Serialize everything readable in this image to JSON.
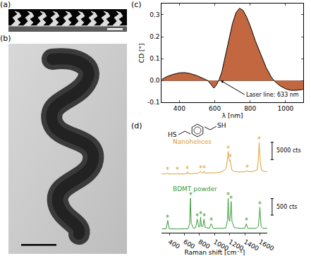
{
  "panels": [
    "(a)",
    "(b)",
    "(c)",
    "(d)"
  ],
  "structure_labels": [
    "HS",
    "SH"
  ],
  "chart_data": [
    {
      "type": "area",
      "x_label": "λ [nm]",
      "y_label": "CD [°]",
      "x": [
        300,
        330,
        360,
        400,
        430,
        460,
        500,
        530,
        560,
        580,
        595,
        610,
        625,
        640,
        660,
        680,
        700,
        720,
        740,
        760,
        780,
        800,
        830,
        860,
        890,
        920,
        940,
        970,
        1000,
        1030,
        1060,
        1090,
        1100
      ],
      "values": [
        0.005,
        0.018,
        0.027,
        0.035,
        0.036,
        0.032,
        0.022,
        0.012,
        0.0,
        -0.02,
        -0.035,
        -0.02,
        0.005,
        0.04,
        0.11,
        0.19,
        0.26,
        0.31,
        0.33,
        0.32,
        0.29,
        0.25,
        0.18,
        0.12,
        0.06,
        0.015,
        -0.005,
        -0.025,
        -0.038,
        -0.045,
        -0.045,
        -0.042,
        -0.04
      ],
      "color": "#c2673f",
      "xlim": [
        300,
        1100
      ],
      "xticks": [
        400,
        600,
        800,
        1000
      ],
      "ylim": [
        -0.1,
        0.35
      ],
      "yticks": [
        -0.1,
        {
          "value": 0,
          "label": "0.0"
        },
        0.1,
        0.2,
        0.3
      ],
      "annotations": [
        {
          "text": "Laser line: 633 nm",
          "x": 633,
          "y": 0
        }
      ]
    },
    {
      "type": "line",
      "x_label": "Raman shift [cm⁻¹]",
      "xlim": [
        300,
        1700
      ],
      "xticks": [
        400,
        600,
        800,
        1000,
        1200,
        1400,
        1600
      ],
      "tick_labels": "x",
      "series": [
        {
          "name": "Nanohelices",
          "color": "#dba034",
          "x": [
            300,
            360,
            375,
            390,
            450,
            500,
            510,
            520,
            600,
            630,
            640,
            650,
            700,
            780,
            800,
            815,
            830,
            850,
            860,
            870,
            950,
            1050,
            1100,
            1150,
            1170,
            1180,
            1190,
            1200,
            1205,
            1215,
            1230,
            1260,
            1300,
            1400,
            1420,
            1430,
            1440,
            1500,
            1560,
            1575,
            1590,
            1605,
            1620,
            1660,
            1700
          ],
          "values": [
            1500,
            1500,
            1900,
            1500,
            1500,
            1500,
            1800,
            1500,
            1500,
            1600,
            2100,
            1600,
            1600,
            1700,
            2000,
            2300,
            1800,
            1800,
            2300,
            1800,
            1800,
            1900,
            2200,
            3000,
            5500,
            8000,
            6000,
            5200,
            5500,
            4000,
            2600,
            2200,
            2100,
            2100,
            2300,
            2500,
            2200,
            2200,
            2600,
            4500,
            10500,
            5000,
            2600,
            2200,
            2200
          ],
          "ylim": [
            0,
            12500
          ],
          "peak_marks": {
            "label": "*",
            "x": [
              375,
              510,
              640,
              815,
              860,
              1180,
              1205,
              1430,
              1590
            ]
          },
          "scale_bar": {
            "value": 5000,
            "label": "5000 cts"
          }
        },
        {
          "name": "BDMT powder",
          "color": "#3a9a3a",
          "x": [
            300,
            360,
            380,
            400,
            500,
            600,
            650,
            670,
            680,
            690,
            720,
            750,
            770,
            790,
            805,
            815,
            825,
            845,
            860,
            875,
            930,
            955,
            980,
            1100,
            1150,
            1170,
            1180,
            1190,
            1200,
            1210,
            1220,
            1230,
            1260,
            1350,
            1400,
            1420,
            1440,
            1550,
            1580,
            1600,
            1615,
            1640,
            1700
          ],
          "values": [
            120,
            130,
            380,
            130,
            120,
            120,
            130,
            300,
            1050,
            300,
            140,
            160,
            420,
            180,
            200,
            480,
            200,
            200,
            420,
            170,
            140,
            280,
            140,
            140,
            150,
            400,
            1050,
            400,
            350,
            600,
            950,
            350,
            160,
            140,
            140,
            280,
            140,
            140,
            200,
            780,
            200,
            140,
            140
          ],
          "ylim": [
            0,
            1200
          ],
          "peak_marks": {
            "label": "*",
            "x": [
              380,
              680,
              770,
              815,
              860,
              955,
              1180,
              1220,
              1420,
              1600
            ]
          },
          "scale_bar": {
            "value": 500,
            "label": "500 cts"
          }
        }
      ]
    }
  ]
}
